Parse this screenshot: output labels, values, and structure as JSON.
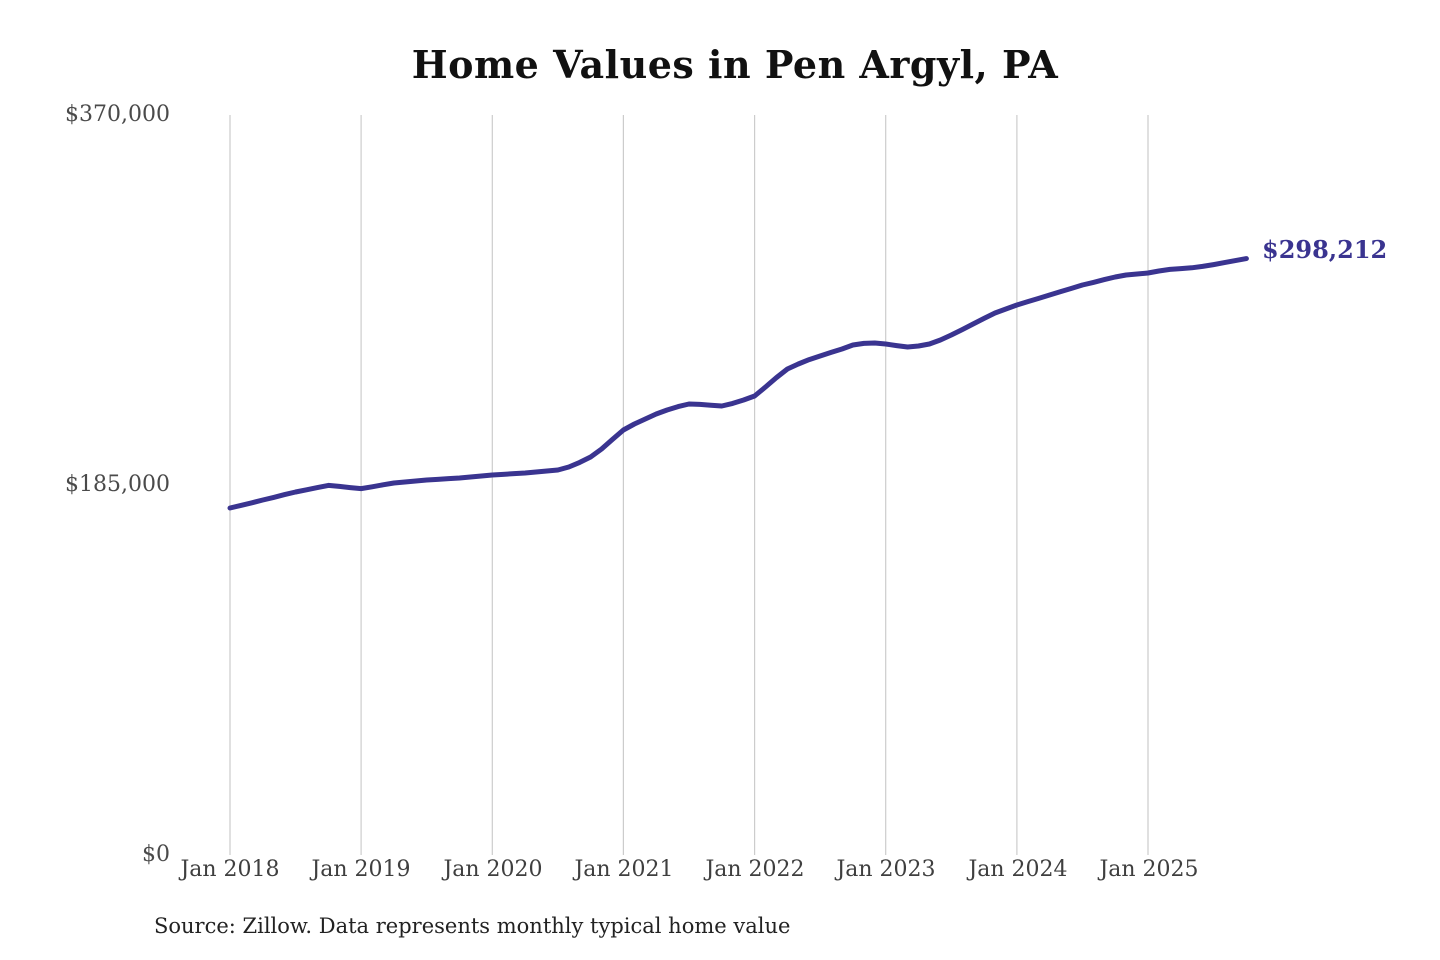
{
  "chart_data": {
    "type": "line",
    "title": "Home Values in Pen Argyl, PA",
    "source": "Source: Zillow. Data represents monthly typical home value",
    "end_label": "$298,212",
    "final_value": 298212,
    "ylim": [
      0,
      370000
    ],
    "grid": "vertical-only",
    "legend_position": "none",
    "line_color": "#3a3490",
    "grid_color": "#cccccc",
    "y_ticks": [
      {
        "label": "$370,000",
        "value": 370000
      },
      {
        "label": "$185,000",
        "value": 185000
      },
      {
        "label": "$0",
        "value": 0
      }
    ],
    "x_ticks": [
      "Jan 2018",
      "Jan 2019",
      "Jan 2020",
      "Jan 2021",
      "Jan 2022",
      "Jan 2023",
      "Jan 2024",
      "Jan 2025"
    ],
    "x": [
      "Jan 2018",
      "Feb 2018",
      "Mar 2018",
      "Apr 2018",
      "May 2018",
      "Jun 2018",
      "Jul 2018",
      "Aug 2018",
      "Sep 2018",
      "Oct 2018",
      "Nov 2018",
      "Dec 2018",
      "Jan 2019",
      "Feb 2019",
      "Mar 2019",
      "Apr 2019",
      "May 2019",
      "Jun 2019",
      "Jul 2019",
      "Aug 2019",
      "Sep 2019",
      "Oct 2019",
      "Nov 2019",
      "Dec 2019",
      "Jan 2020",
      "Feb 2020",
      "Mar 2020",
      "Apr 2020",
      "May 2020",
      "Jun 2020",
      "Jul 2020",
      "Aug 2020",
      "Sep 2020",
      "Oct 2020",
      "Nov 2020",
      "Dec 2020",
      "Jan 2021",
      "Feb 2021",
      "Mar 2021",
      "Apr 2021",
      "May 2021",
      "Jun 2021",
      "Jul 2021",
      "Aug 2021",
      "Sep 2021",
      "Oct 2021",
      "Nov 2021",
      "Dec 2021",
      "Jan 2022",
      "Feb 2022",
      "Mar 2022",
      "Apr 2022",
      "May 2022",
      "Jun 2022",
      "Jul 2022",
      "Aug 2022",
      "Sep 2022",
      "Oct 2022",
      "Nov 2022",
      "Dec 2022",
      "Jan 2023",
      "Feb 2023",
      "Mar 2023",
      "Apr 2023",
      "May 2023",
      "Jun 2023",
      "Jul 2023",
      "Aug 2023",
      "Sep 2023",
      "Oct 2023",
      "Nov 2023",
      "Dec 2023",
      "Jan 2024",
      "Feb 2024",
      "Mar 2024",
      "Apr 2024",
      "May 2024",
      "Jun 2024",
      "Jul 2024",
      "Aug 2024",
      "Sep 2024",
      "Oct 2024",
      "Nov 2024",
      "Dec 2024",
      "Jan 2025",
      "Feb 2025",
      "Mar 2025",
      "Apr 2025",
      "May 2025",
      "Jun 2025",
      "Jul 2025",
      "Aug 2025",
      "Sep 2025",
      "Oct 2025"
    ],
    "values": [
      173500,
      174800,
      176100,
      177500,
      178800,
      180200,
      181500,
      182600,
      183700,
      184800,
      184300,
      183700,
      183200,
      184100,
      185100,
      186000,
      186500,
      187000,
      187500,
      187800,
      188200,
      188500,
      189000,
      189500,
      190000,
      190300,
      190700,
      191000,
      191500,
      192000,
      192500,
      194000,
      196300,
      199000,
      203000,
      207800,
      212500,
      215500,
      218000,
      220500,
      222500,
      224200,
      225500,
      225300,
      224900,
      224500,
      225800,
      227500,
      229500,
      234000,
      238700,
      243000,
      245500,
      247700,
      249500,
      251300,
      253000,
      255000,
      255800,
      256000,
      255500,
      254700,
      254000,
      254500,
      255500,
      257500,
      260000,
      262700,
      265500,
      268300,
      271000,
      273000,
      275000,
      276700,
      278300,
      280000,
      281700,
      283300,
      285000,
      286300,
      287700,
      289000,
      290000,
      290500,
      291000,
      292000,
      292800,
      293200,
      293600,
      294300,
      295200,
      296200,
      297200,
      298212
    ]
  }
}
